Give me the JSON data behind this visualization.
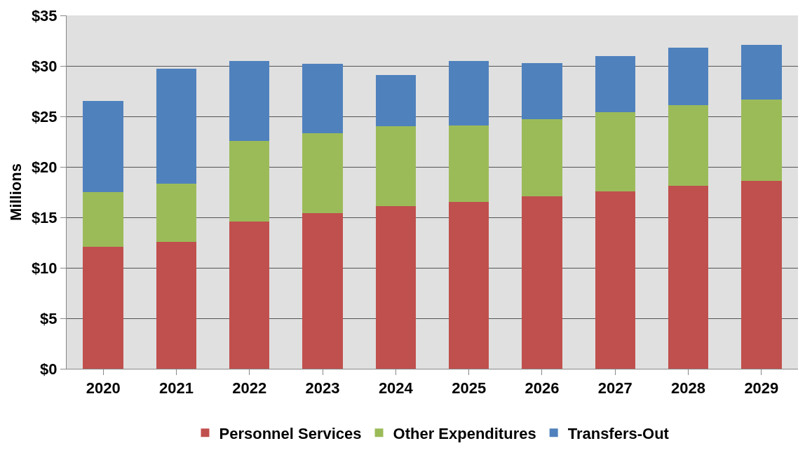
{
  "chart_data": {
    "type": "bar",
    "stacked": true,
    "ylabel": "Millions",
    "categories": [
      "2020",
      "2021",
      "2022",
      "2023",
      "2024",
      "2025",
      "2026",
      "2027",
      "2028",
      "2029"
    ],
    "series": [
      {
        "name": "Personnel Services",
        "color": "#c0504d",
        "values": [
          12.1,
          12.6,
          14.6,
          15.4,
          16.1,
          16.5,
          17.1,
          17.6,
          18.1,
          18.6
        ]
      },
      {
        "name": "Other Expenditures",
        "color": "#9bbb59",
        "values": [
          5.4,
          5.7,
          8.0,
          7.9,
          7.9,
          7.6,
          7.6,
          7.8,
          8.0,
          8.1
        ]
      },
      {
        "name": "Transfers-Out",
        "color": "#4f81bd",
        "values": [
          9.0,
          11.4,
          7.9,
          6.9,
          5.1,
          6.4,
          5.6,
          5.6,
          5.7,
          5.4
        ]
      }
    ],
    "ylim": [
      0,
      35
    ],
    "yticks": [
      {
        "value": 0,
        "label": "$0"
      },
      {
        "value": 5,
        "label": "$5"
      },
      {
        "value": 10,
        "label": "$10"
      },
      {
        "value": 15,
        "label": "$15"
      },
      {
        "value": 20,
        "label": "$20"
      },
      {
        "value": 25,
        "label": "$25"
      },
      {
        "value": 30,
        "label": "$30"
      },
      {
        "value": 35,
        "label": "$35"
      }
    ],
    "grid": "y",
    "legend": "bottom"
  }
}
